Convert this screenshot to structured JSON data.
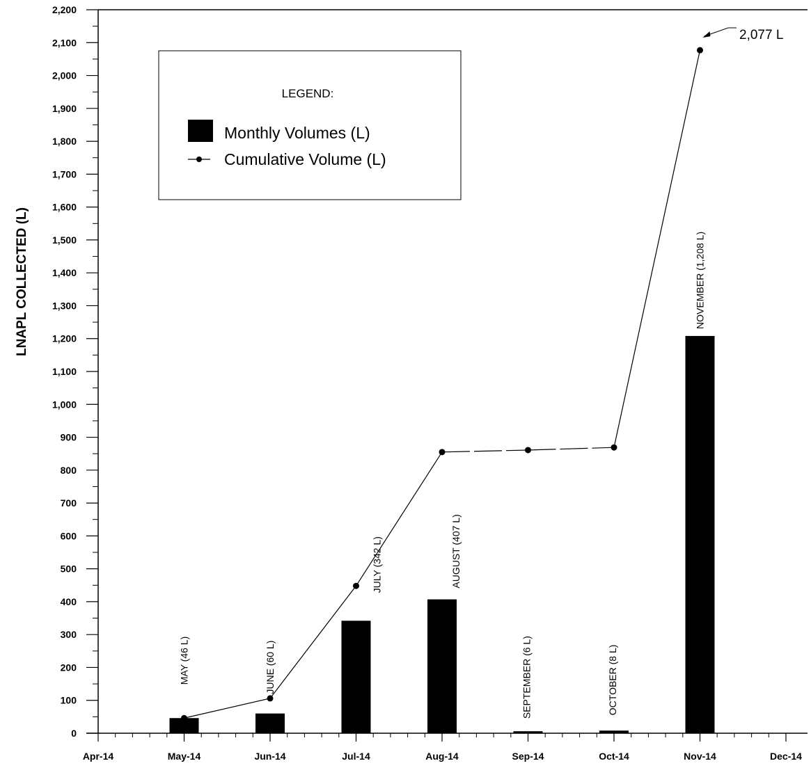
{
  "chart_data": {
    "type": "bar",
    "title": "",
    "ylabel": "LNAPL COLLECTED (L)",
    "xlabel": "",
    "ylim": [
      0,
      2200
    ],
    "y_ticks": [
      "0",
      "100",
      "200",
      "300",
      "400",
      "500",
      "600",
      "700",
      "800",
      "900",
      "1,000",
      "1,100",
      "1,200",
      "1,300",
      "1,400",
      "1,500",
      "1,600",
      "1,700",
      "1,800",
      "1,900",
      "2,000",
      "2,100",
      "2,200"
    ],
    "x_ticks": [
      "Apr-14",
      "May-14",
      "Jun-14",
      "Jul-14",
      "Aug-14",
      "Sep-14",
      "Oct-14",
      "Nov-14",
      "Dec-14"
    ],
    "categories": [
      "May-14",
      "Jun-14",
      "Jul-14",
      "Aug-14",
      "Sep-14",
      "Oct-14",
      "Nov-14"
    ],
    "series": [
      {
        "name": "Monthly Volumes (L)",
        "type": "bar",
        "color": "#000000",
        "values": [
          46,
          60,
          342,
          407,
          6,
          8,
          1208
        ],
        "labels": [
          "MAY (46 L)",
          "JUNE (60 L)",
          "JULY (342 L)",
          "AUGUST (407 L)",
          "SEPTEMBER (6 L)",
          "OCTOBER (8 L)",
          "NOVEMBER (1,208 L)"
        ]
      },
      {
        "name": "Cumulative Volume (L)",
        "type": "line",
        "color": "#000000",
        "values": [
          46,
          106,
          448,
          855,
          861,
          869,
          2077
        ]
      }
    ],
    "legend": {
      "title": "LEGEND:",
      "position": "top-left"
    },
    "annotations": [
      {
        "text": "2,077 L",
        "x": "Nov-14",
        "y": 2077
      }
    ],
    "grid": false
  }
}
